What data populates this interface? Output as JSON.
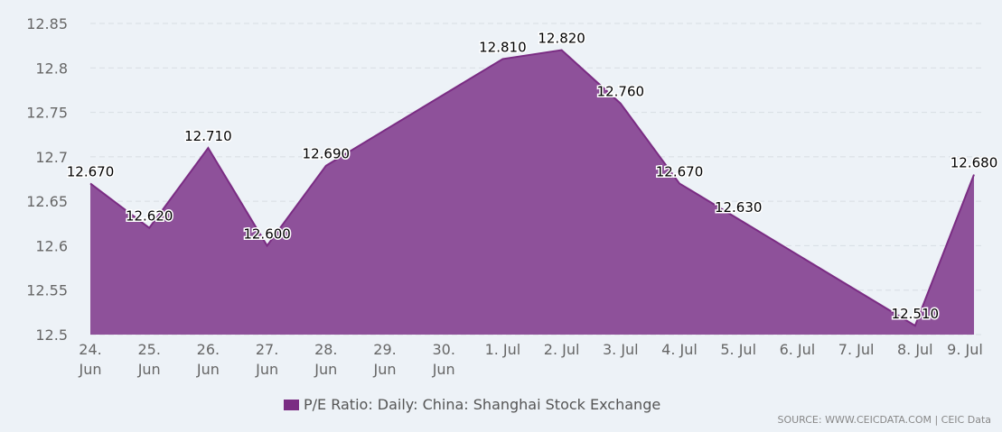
{
  "chart_data": {
    "type": "area",
    "title": "",
    "xlabel": "",
    "ylabel": "",
    "categories": [
      "24. Jun",
      "25. Jun",
      "26. Jun",
      "27. Jun",
      "28. Jun",
      "29. Jun",
      "30. Jun",
      "1. Jul",
      "2. Jul",
      "3. Jul",
      "4. Jul",
      "5. Jul",
      "6. Jul",
      "7. Jul",
      "8. Jul",
      "9. Jul"
    ],
    "series": [
      {
        "name": "P/E Ratio: Daily: China: Shanghai Stock Exchange",
        "values": [
          12.67,
          12.62,
          12.71,
          12.6,
          12.69,
          null,
          null,
          12.81,
          12.82,
          12.76,
          12.67,
          12.63,
          null,
          null,
          12.51,
          12.68
        ],
        "data_labels": [
          "12.670",
          "12.620",
          "12.710",
          "12.600",
          "12.690",
          null,
          null,
          "12.810",
          "12.820",
          "12.760",
          "12.670",
          "12.630",
          null,
          null,
          "12.510",
          "12.680"
        ]
      }
    ],
    "ylim": [
      12.5,
      12.85
    ],
    "yticks": [
      "12.5",
      "12.55",
      "12.6",
      "12.65",
      "12.7",
      "12.75",
      "12.8",
      "12.85"
    ],
    "grid": true,
    "legend_position": "bottom",
    "colors": {
      "fill": "#8e519a",
      "line": "#7a2c83",
      "swatch": "#7a2c83"
    }
  },
  "source": "SOURCE: WWW.CEICDATA.COM | CEIC Data"
}
